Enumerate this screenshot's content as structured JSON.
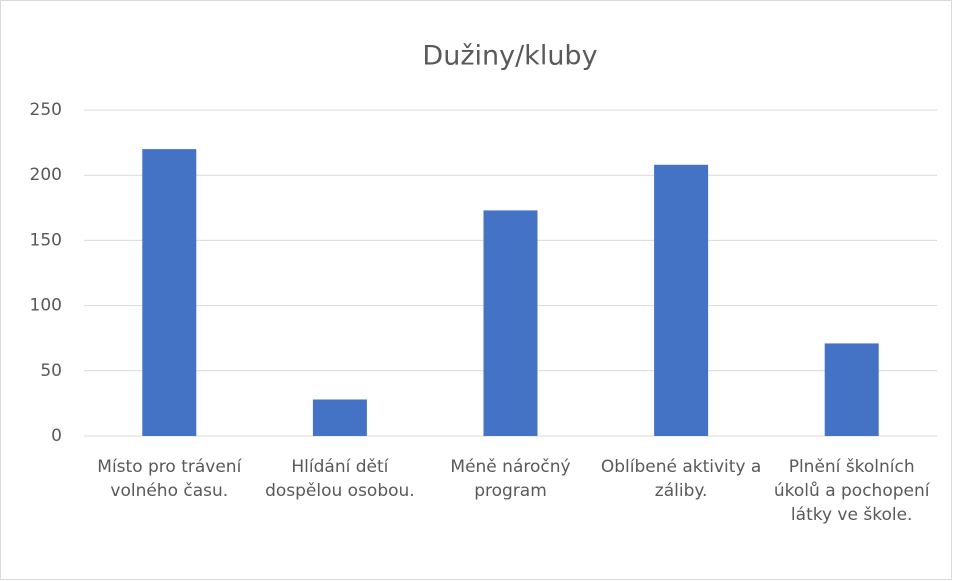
{
  "chart_data": {
    "type": "bar",
    "title": "Dužiny/kluby",
    "categories": [
      "Místo pro trávení volného času.",
      "Hlídání dětí dospělou osobou.",
      "Méně náročný program",
      "Oblíbené aktivity a záliby.",
      "Plnění školních úkolů a pochopení látky ve škole."
    ],
    "values": [
      220,
      28,
      173,
      208,
      71
    ],
    "color": "#4472c4",
    "ylim": [
      0,
      250
    ],
    "yticks": [
      0,
      50,
      100,
      150,
      200,
      250
    ],
    "grid": true
  }
}
